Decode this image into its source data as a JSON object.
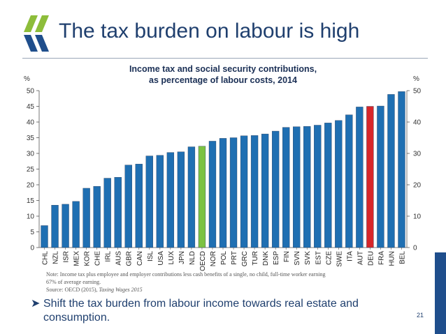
{
  "slide": {
    "title": "The tax burden on labour is high",
    "page_number": "21",
    "bullet": "Shift the tax burden from labour income towards real estate and consumption.",
    "note_line1": "Note: Income tax plus employee and employer contributions less cash benefits of  a single, no child,  full-time worker earning",
    "note_line2": "67% of average earning.",
    "source_prefix": "Source: OECD (2015), ",
    "source_title": "Taxing Wages 2015",
    "colors": {
      "title": "#1f3f6e",
      "bar": "#1f6fb2",
      "oecd": "#7cc242",
      "deu": "#d7262a",
      "logo_green": "#8dbd3a",
      "logo_blue": "#1f4e8c"
    }
  },
  "chart_data": {
    "type": "bar",
    "title": "Income tax and social security contributions,",
    "subtitle": "as percentage of labour costs, 2014",
    "ylabel_left": "%",
    "ylabel_right": "%",
    "ylim": [
      0,
      50
    ],
    "left_ticks": [
      0,
      5,
      10,
      15,
      20,
      25,
      30,
      35,
      40,
      45,
      50
    ],
    "right_ticks": [
      0,
      10,
      20,
      30,
      40,
      50
    ],
    "categories": [
      "CHL",
      "NZL",
      "ISR",
      "MEX",
      "KOR",
      "CHE",
      "IRL",
      "AUS",
      "GBR",
      "CAN",
      "ISL",
      "USA",
      "LUX",
      "JPN",
      "NLD",
      "OECD",
      "NOR",
      "POL",
      "PRT",
      "GRC",
      "TUR",
      "DNK",
      "ESP",
      "FIN",
      "SVN",
      "SVK",
      "EST",
      "CZE",
      "SWE",
      "ITA",
      "AUT",
      "DEU",
      "FRA",
      "HUN",
      "BEL"
    ],
    "values": [
      7.0,
      13.5,
      13.8,
      14.7,
      18.9,
      19.5,
      22.1,
      22.4,
      26.3,
      26.6,
      29.2,
      29.4,
      30.3,
      30.5,
      32.1,
      32.3,
      33.9,
      34.8,
      35.0,
      35.6,
      35.7,
      36.2,
      37.1,
      38.3,
      38.5,
      38.6,
      39.0,
      39.7,
      40.5,
      42.3,
      44.8,
      45.0,
      45.1,
      48.8,
      49.7
    ],
    "highlight": {
      "OECD": "oecd",
      "DEU": "deu"
    },
    "grid": false
  }
}
